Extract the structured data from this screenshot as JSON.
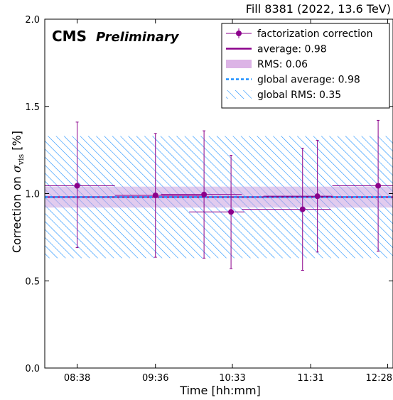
{
  "chart_data": {
    "type": "scatter",
    "title": "Fill 8381 (2022, 13.6 TeV)",
    "experiment_label": "CMS",
    "experiment_sublabel": "Preliminary",
    "xlabel": "Time [hh:mm]",
    "ylabel_prefix": "Correction on ",
    "ylabel_symbol": "σ",
    "ylabel_subscript": "vis",
    "ylabel_suffix": " [%]",
    "xticks": [
      "08:38",
      "09:36",
      "10:33",
      "11:31",
      "12:28"
    ],
    "xlim": [
      "08:14",
      "12:32"
    ],
    "ylim": [
      0.0,
      2.0
    ],
    "yticks": [
      "0.0",
      "0.5",
      "1.0",
      "1.5",
      "2.0"
    ],
    "grid": false,
    "legend_position": "top-right",
    "series": [
      {
        "name": "factorization correction",
        "color": "#8b008b",
        "points": [
          {
            "x": "08:38",
            "x_start": "08:14",
            "x_end": "09:06",
            "y": 1.045,
            "y_low": 0.69,
            "y_high": 1.41
          },
          {
            "x": "09:36",
            "x_start": "09:06",
            "x_end": "10:10",
            "y": 0.99,
            "y_low": 0.635,
            "y_high": 1.345
          },
          {
            "x": "10:12",
            "x_start": "09:40",
            "x_end": "10:40",
            "y": 0.995,
            "y_low": 0.63,
            "y_high": 1.36
          },
          {
            "x": "10:32",
            "x_start": "10:01",
            "x_end": "10:42",
            "y": 0.895,
            "y_low": 0.57,
            "y_high": 1.22
          },
          {
            "x": "11:25",
            "x_start": "10:40",
            "x_end": "11:46",
            "y": 0.91,
            "y_low": 0.56,
            "y_high": 1.26
          },
          {
            "x": "11:36",
            "x_start": "10:56",
            "x_end": "11:47",
            "y": 0.985,
            "y_low": 0.665,
            "y_high": 1.305
          },
          {
            "x": "12:21",
            "x_start": "11:47",
            "x_end": "12:32",
            "y": 1.045,
            "y_low": 0.67,
            "y_high": 1.42
          }
        ]
      }
    ],
    "legend": [
      {
        "label": "factorization correction",
        "style": "marker-errorbar",
        "color": "#8b008b"
      },
      {
        "label": "average: 0.98",
        "style": "line",
        "color": "#8b008b"
      },
      {
        "label": "RMS: 0.06",
        "style": "band",
        "color": "#dcb4e6"
      },
      {
        "label": "global average: 0.98",
        "style": "dashed",
        "color": "#1e90ff"
      },
      {
        "label": "global RMS: 0.35",
        "style": "hatch",
        "color": "#1e90ff"
      }
    ],
    "average": 0.98,
    "rms": 0.06,
    "global_average": 0.98,
    "global_rms": 0.35
  }
}
